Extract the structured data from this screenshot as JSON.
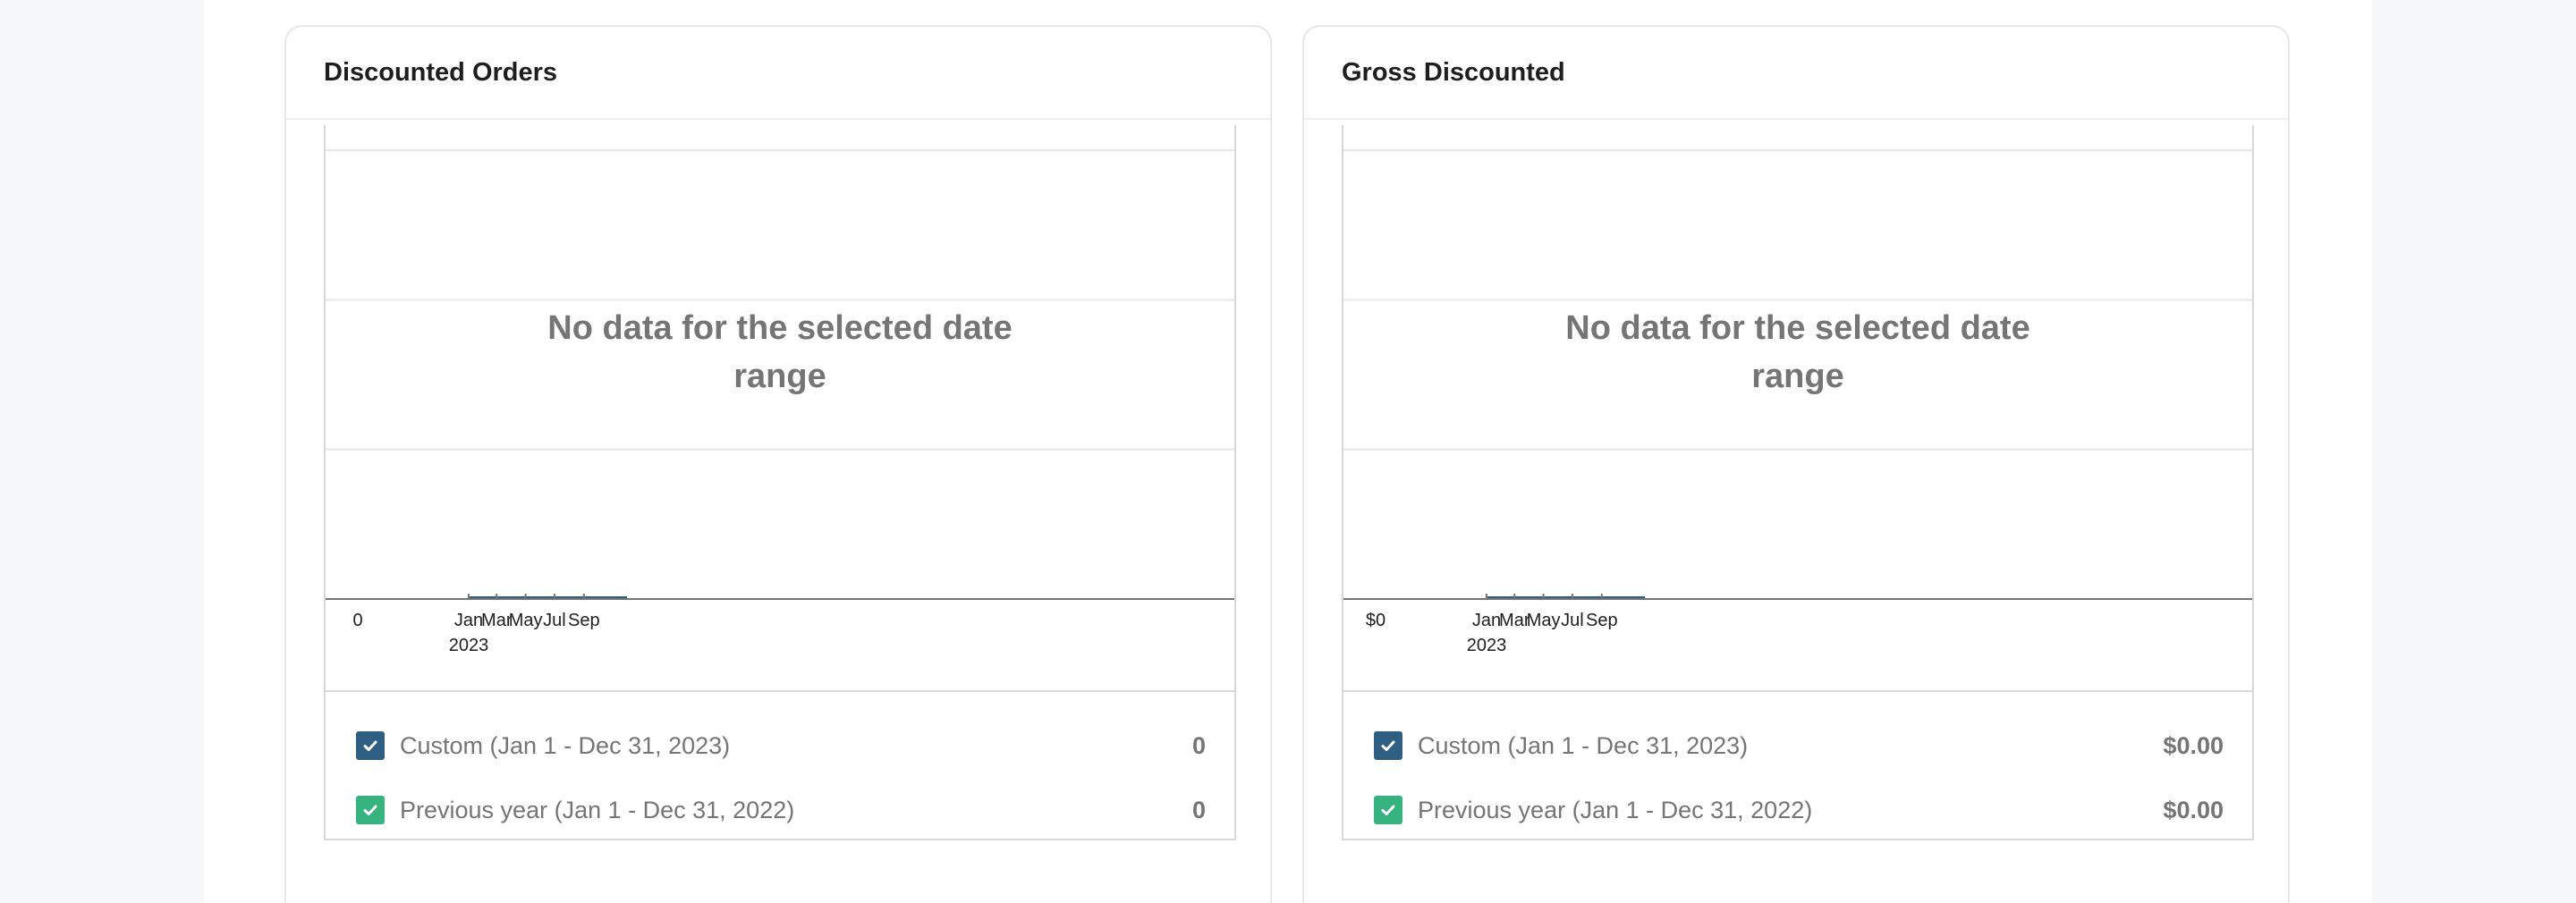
{
  "charts": [
    {
      "title": "Discounted Orders",
      "empty_message": "No data for the selected date range",
      "legend": [
        {
          "label": "Custom (Jan 1 - Dec 31, 2023)",
          "value": "0",
          "color": "#2e5f82"
        },
        {
          "label": "Previous year (Jan 1 - Dec 31, 2022)",
          "value": "0",
          "color": "#36b37e"
        }
      ]
    },
    {
      "title": "Gross Discounted",
      "empty_message": "No data for the selected date range",
      "legend": [
        {
          "label": "Custom (Jan 1 - Dec 31, 2023)",
          "value": "$0.00",
          "color": "#2e5f82"
        },
        {
          "label": "Previous year (Jan 1 - Dec 31, 2022)",
          "value": "$0.00",
          "color": "#36b37e"
        }
      ]
    }
  ],
  "chart_data": [
    {
      "type": "line",
      "title": "Discounted Orders",
      "x": [
        "2023-01-01",
        "2023-02-01",
        "2023-03-01",
        "2023-04-01",
        "2023-05-01",
        "2023-06-01",
        "2023-07-01",
        "2023-08-01",
        "2023-09-01",
        "2023-10-01",
        "2023-11-01",
        "2023-12-01"
      ],
      "x_tick_labels": [
        [
          "Jan",
          "2023"
        ],
        [
          "Mar"
        ],
        [
          "May"
        ],
        [
          "Jul"
        ],
        [
          "Sep"
        ]
      ],
      "y_tick_labels": [
        "0"
      ],
      "series": [
        {
          "name": "Custom (Jan 1 - Dec 31, 2023)",
          "values": [
            0,
            0,
            0,
            0,
            0,
            0,
            0,
            0,
            0,
            0,
            0,
            0
          ],
          "color": "#2e5f82"
        }
      ],
      "ylim": [
        0,
        3
      ],
      "grid": true
    },
    {
      "type": "line",
      "title": "Gross Discounted",
      "x": [
        "2023-01-01",
        "2023-02-01",
        "2023-03-01",
        "2023-04-01",
        "2023-05-01",
        "2023-06-01",
        "2023-07-01",
        "2023-08-01",
        "2023-09-01",
        "2023-10-01",
        "2023-11-01",
        "2023-12-01"
      ],
      "x_tick_labels": [
        [
          "Jan",
          "2023"
        ],
        [
          "Mar"
        ],
        [
          "May"
        ],
        [
          "Jul"
        ],
        [
          "Sep"
        ]
      ],
      "y_tick_labels": [
        "$0"
      ],
      "series": [
        {
          "name": "Custom (Jan 1 - Dec 31, 2023)",
          "values": [
            0,
            0,
            0,
            0,
            0,
            0,
            0,
            0,
            0,
            0,
            0,
            0
          ],
          "color": "#2e5f82"
        }
      ],
      "ylim": [
        0,
        3
      ],
      "grid": true
    }
  ]
}
